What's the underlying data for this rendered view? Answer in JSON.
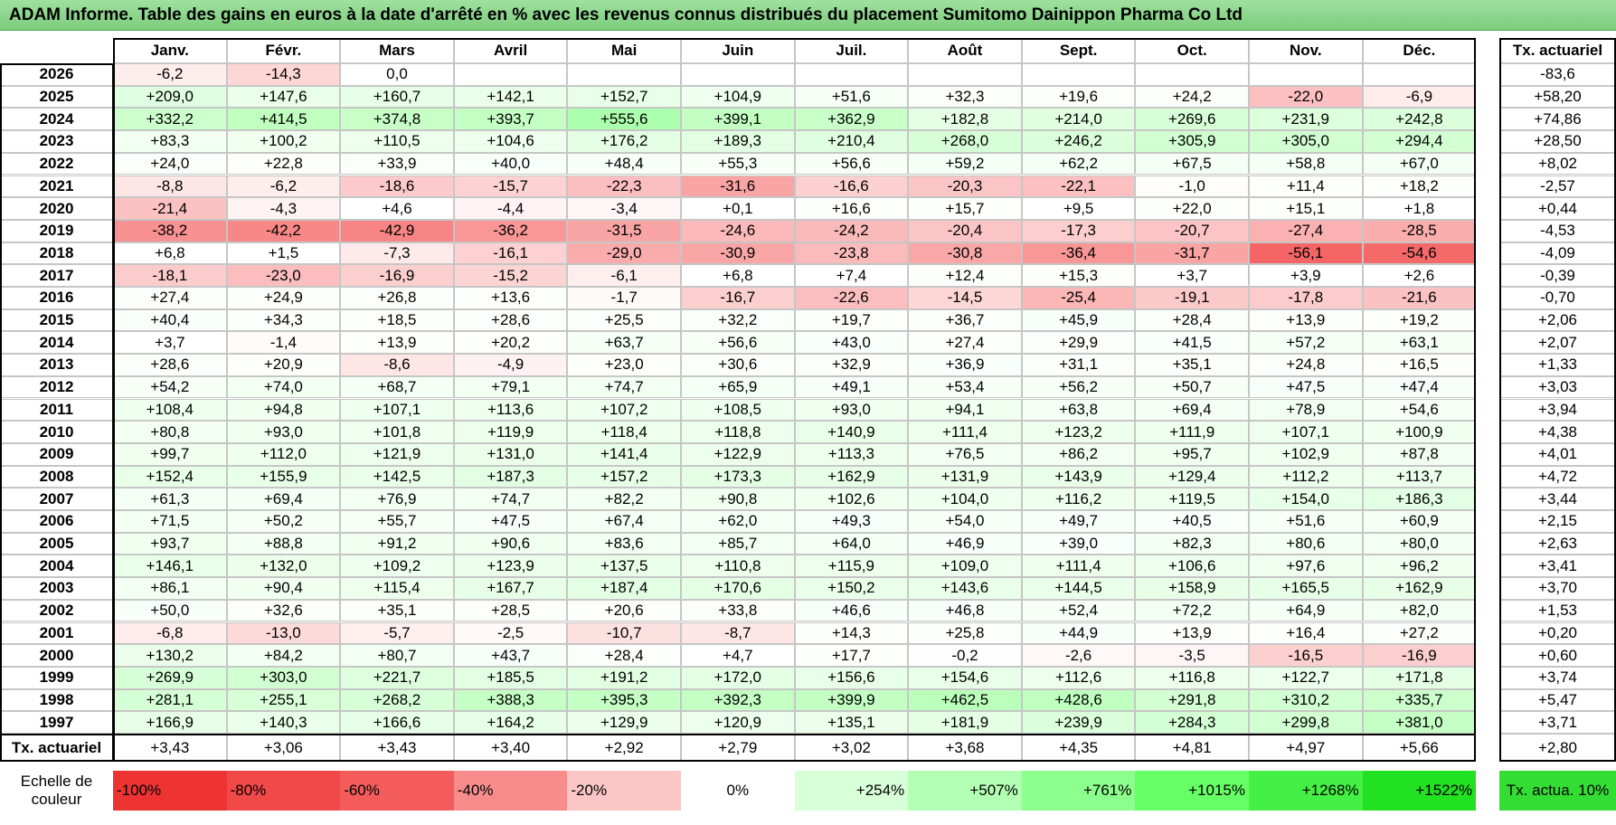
{
  "title": "ADAM Informe. Table des gains en euros à la date d'arrêté en % avec les revenus connus distribués du placement Sumitomo Dainippon Pharma Co Ltd",
  "table": {
    "columns": [
      "Janv.",
      "Févr.",
      "Mars",
      "Avril",
      "Mai",
      "Juin",
      "Juil.",
      "Août",
      "Sept.",
      "Oct.",
      "Nov.",
      "Déc."
    ],
    "total_header": "Tx. actuariel",
    "rows": [
      {
        "year": "2026",
        "cells": [
          "-6,2",
          "-14,3",
          "0,0",
          null,
          null,
          null,
          null,
          null,
          null,
          null,
          null,
          null
        ],
        "total": "-83,6"
      },
      {
        "year": "2025",
        "cells": [
          "+209,0",
          "+147,6",
          "+160,7",
          "+142,1",
          "+152,7",
          "+104,9",
          "+51,6",
          "+32,3",
          "+19,6",
          "+24,2",
          "-22,0",
          "-6,9"
        ],
        "total": "+58,20"
      },
      {
        "year": "2024",
        "cells": [
          "+332,2",
          "+414,5",
          "+374,8",
          "+393,7",
          "+555,6",
          "+399,1",
          "+362,9",
          "+182,8",
          "+214,0",
          "+269,6",
          "+231,9",
          "+242,8"
        ],
        "total": "+74,86"
      },
      {
        "year": "2023",
        "cells": [
          "+83,3",
          "+100,2",
          "+110,5",
          "+104,6",
          "+176,2",
          "+189,3",
          "+210,4",
          "+268,0",
          "+246,2",
          "+305,9",
          "+305,0",
          "+294,4"
        ],
        "total": "+28,50"
      },
      {
        "year": "2022",
        "cells": [
          "+24,0",
          "+22,8",
          "+33,9",
          "+40,0",
          "+48,4",
          "+55,3",
          "+56,6",
          "+59,2",
          "+62,2",
          "+67,5",
          "+58,8",
          "+67,0"
        ],
        "total": "+8,02"
      },
      {
        "year": "2021",
        "cells": [
          "-8,8",
          "-6,2",
          "-18,6",
          "-15,7",
          "-22,3",
          "-31,6",
          "-16,6",
          "-20,3",
          "-22,1",
          "-1,0",
          "+11,4",
          "+18,2"
        ],
        "total": "-2,57"
      },
      {
        "year": "2020",
        "cells": [
          "-21,4",
          "-4,3",
          "+4,6",
          "-4,4",
          "-3,4",
          "+0,1",
          "+16,6",
          "+15,7",
          "+9,5",
          "+22,0",
          "+15,1",
          "+1,8"
        ],
        "total": "+0,44"
      },
      {
        "year": "2019",
        "cells": [
          "-38,2",
          "-42,2",
          "-42,9",
          "-36,2",
          "-31,5",
          "-24,6",
          "-24,2",
          "-20,4",
          "-17,3",
          "-20,7",
          "-27,4",
          "-28,5"
        ],
        "total": "-4,53"
      },
      {
        "year": "2018",
        "cells": [
          "+6,8",
          "+1,5",
          "-7,3",
          "-16,1",
          "-29,0",
          "-30,9",
          "-23,8",
          "-30,8",
          "-36,4",
          "-31,7",
          "-56,1",
          "-54,6"
        ],
        "total": "-4,09"
      },
      {
        "year": "2017",
        "cells": [
          "-18,1",
          "-23,0",
          "-16,9",
          "-15,2",
          "-6,1",
          "+6,8",
          "+7,4",
          "+12,4",
          "+15,3",
          "+3,7",
          "+3,9",
          "+2,6"
        ],
        "total": "-0,39"
      },
      {
        "year": "2016",
        "cells": [
          "+27,4",
          "+24,9",
          "+26,8",
          "+13,6",
          "-1,7",
          "-16,7",
          "-22,6",
          "-14,5",
          "-25,4",
          "-19,1",
          "-17,8",
          "-21,6"
        ],
        "total": "-0,70"
      },
      {
        "year": "2015",
        "cells": [
          "+40,4",
          "+34,3",
          "+18,5",
          "+28,6",
          "+25,5",
          "+32,2",
          "+19,7",
          "+36,7",
          "+45,9",
          "+28,4",
          "+13,9",
          "+19,2"
        ],
        "total": "+2,06"
      },
      {
        "year": "2014",
        "cells": [
          "+3,7",
          "-1,4",
          "+13,9",
          "+20,2",
          "+63,7",
          "+56,6",
          "+43,0",
          "+27,4",
          "+29,9",
          "+41,5",
          "+57,2",
          "+63,1"
        ],
        "total": "+2,07"
      },
      {
        "year": "2013",
        "cells": [
          "+28,6",
          "+20,9",
          "-8,6",
          "-4,9",
          "+23,0",
          "+30,6",
          "+32,9",
          "+36,9",
          "+31,1",
          "+35,1",
          "+24,8",
          "+16,5"
        ],
        "total": "+1,33"
      },
      {
        "year": "2012",
        "cells": [
          "+54,2",
          "+74,0",
          "+68,7",
          "+79,1",
          "+74,7",
          "+65,9",
          "+49,1",
          "+53,4",
          "+56,2",
          "+50,7",
          "+47,5",
          "+47,4"
        ],
        "total": "+3,03"
      },
      {
        "year": "2011",
        "cells": [
          "+108,4",
          "+94,8",
          "+107,1",
          "+113,6",
          "+107,2",
          "+108,5",
          "+93,0",
          "+94,1",
          "+63,8",
          "+69,4",
          "+78,9",
          "+54,6"
        ],
        "total": "+3,94"
      },
      {
        "year": "2010",
        "cells": [
          "+80,8",
          "+93,0",
          "+101,8",
          "+119,9",
          "+118,4",
          "+118,8",
          "+140,9",
          "+111,4",
          "+123,2",
          "+111,9",
          "+107,1",
          "+100,9"
        ],
        "total": "+4,38"
      },
      {
        "year": "2009",
        "cells": [
          "+99,7",
          "+112,0",
          "+121,9",
          "+131,0",
          "+141,4",
          "+122,9",
          "+113,3",
          "+76,5",
          "+86,2",
          "+95,7",
          "+102,9",
          "+87,8"
        ],
        "total": "+4,01"
      },
      {
        "year": "2008",
        "cells": [
          "+152,4",
          "+155,9",
          "+142,5",
          "+187,3",
          "+157,2",
          "+173,3",
          "+162,9",
          "+131,9",
          "+143,9",
          "+129,4",
          "+112,2",
          "+113,7"
        ],
        "total": "+4,72"
      },
      {
        "year": "2007",
        "cells": [
          "+61,3",
          "+69,4",
          "+76,9",
          "+74,7",
          "+82,2",
          "+90,8",
          "+102,6",
          "+104,0",
          "+116,2",
          "+119,5",
          "+154,0",
          "+186,3"
        ],
        "total": "+3,44"
      },
      {
        "year": "2006",
        "cells": [
          "+71,5",
          "+50,2",
          "+55,7",
          "+47,5",
          "+67,4",
          "+62,0",
          "+49,3",
          "+54,0",
          "+49,7",
          "+40,5",
          "+51,6",
          "+60,9"
        ],
        "total": "+2,15"
      },
      {
        "year": "2005",
        "cells": [
          "+93,7",
          "+88,8",
          "+91,2",
          "+90,6",
          "+83,6",
          "+85,7",
          "+64,0",
          "+46,9",
          "+39,0",
          "+82,3",
          "+80,6",
          "+80,0"
        ],
        "total": "+2,63"
      },
      {
        "year": "2004",
        "cells": [
          "+146,1",
          "+132,0",
          "+109,2",
          "+123,9",
          "+137,5",
          "+110,8",
          "+115,9",
          "+109,0",
          "+111,4",
          "+106,6",
          "+97,6",
          "+96,2"
        ],
        "total": "+3,41"
      },
      {
        "year": "2003",
        "cells": [
          "+86,1",
          "+90,4",
          "+115,4",
          "+167,7",
          "+187,4",
          "+170,6",
          "+150,2",
          "+143,6",
          "+144,5",
          "+158,9",
          "+165,5",
          "+162,9"
        ],
        "total": "+3,70"
      },
      {
        "year": "2002",
        "cells": [
          "+50,0",
          "+32,6",
          "+35,1",
          "+28,5",
          "+20,6",
          "+33,8",
          "+46,6",
          "+46,8",
          "+52,4",
          "+72,2",
          "+64,9",
          "+82,0"
        ],
        "total": "+1,53"
      },
      {
        "year": "2001",
        "cells": [
          "-6,8",
          "-13,0",
          "-5,7",
          "-2,5",
          "-10,7",
          "-8,7",
          "+14,3",
          "+25,8",
          "+44,9",
          "+13,9",
          "+16,4",
          "+27,2"
        ],
        "total": "+0,20"
      },
      {
        "year": "2000",
        "cells": [
          "+130,2",
          "+84,2",
          "+80,7",
          "+43,7",
          "+28,4",
          "+4,7",
          "+17,7",
          "-0,2",
          "-2,6",
          "-3,5",
          "-16,5",
          "-16,9"
        ],
        "total": "+0,60"
      },
      {
        "year": "1999",
        "cells": [
          "+269,9",
          "+303,0",
          "+221,7",
          "+185,5",
          "+191,2",
          "+172,0",
          "+156,6",
          "+154,6",
          "+112,6",
          "+116,8",
          "+122,7",
          "+171,8"
        ],
        "total": "+3,74"
      },
      {
        "year": "1998",
        "cells": [
          "+281,1",
          "+255,1",
          "+268,2",
          "+388,3",
          "+395,3",
          "+392,3",
          "+399,9",
          "+462,5",
          "+428,6",
          "+291,8",
          "+310,2",
          "+335,7"
        ],
        "total": "+5,47"
      },
      {
        "year": "1997",
        "cells": [
          "+166,9",
          "+140,3",
          "+166,6",
          "+164,2",
          "+129,9",
          "+120,9",
          "+135,1",
          "+181,9",
          "+239,9",
          "+284,3",
          "+299,8",
          "+381,0"
        ],
        "total": "+3,71"
      }
    ],
    "footer": {
      "label": "Tx. actuariel",
      "cells": [
        "+3,43",
        "+3,06",
        "+3,43",
        "+3,40",
        "+2,92",
        "+2,79",
        "+3,02",
        "+3,68",
        "+4,35",
        "+4,81",
        "+4,97",
        "+5,66"
      ],
      "total": "+2,80"
    }
  },
  "legend": {
    "label": "Echelle de couleur",
    "items": [
      {
        "label": "-100%",
        "color": "#ee3333"
      },
      {
        "label": "-80%",
        "color": "#f14848"
      },
      {
        "label": "-60%",
        "color": "#f45c5c"
      },
      {
        "label": "-40%",
        "color": "#f88c8c"
      },
      {
        "label": "-20%",
        "color": "#fcc6c6"
      },
      {
        "label": "0%",
        "color": "#ffffff"
      },
      {
        "label": "+254%",
        "color": "#d9ffd9"
      },
      {
        "label": "+507%",
        "color": "#b3ffb3"
      },
      {
        "label": "+761%",
        "color": "#8cff8c"
      },
      {
        "label": "+1015%",
        "color": "#66ff66"
      },
      {
        "label": "+1268%",
        "color": "#44f044"
      },
      {
        "label": "+1522%",
        "color": "#22e022"
      }
    ],
    "extra": {
      "label": "Tx. actua. 10%",
      "color": "#33dd33"
    }
  }
}
